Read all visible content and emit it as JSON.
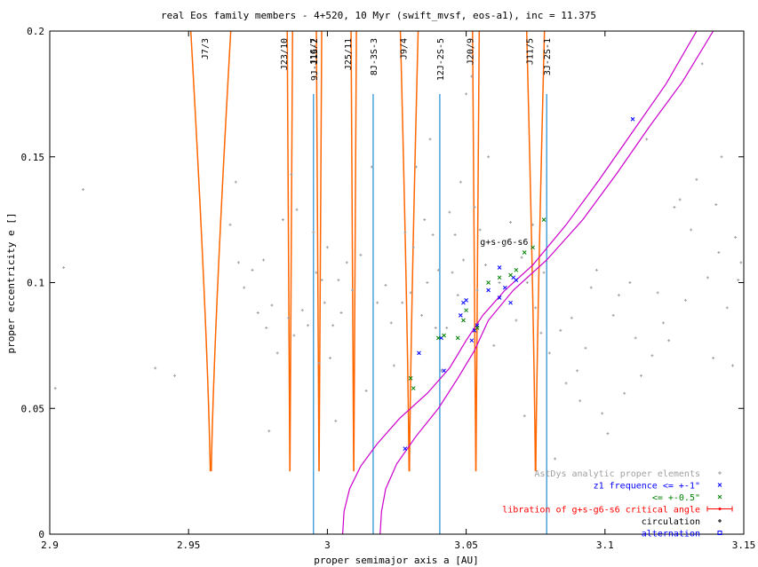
{
  "chart_data": {
    "type": "scatter",
    "title": "real Eos family members - 4+520, 10 Myr (swift_mvsf, eos-a1), inc = 11.375",
    "xlabel": "proper semimajor axis a [AU]",
    "ylabel": "proper eccentricity e []",
    "xlim": [
      2.9,
      3.15
    ],
    "ylim": [
      0,
      0.2
    ],
    "xticks": [
      2.9,
      2.95,
      3.0,
      3.05,
      3.1,
      3.15
    ],
    "xtick_labels": [
      "2.9",
      "2.95",
      "3",
      "3.05",
      "3.1",
      "3.15"
    ],
    "yticks": [
      0,
      0.05,
      0.1,
      0.15,
      0.2
    ],
    "ytick_labels": [
      "0",
      "0.05",
      "0.1",
      "0.15",
      "0.2"
    ],
    "grid": false,
    "legend_position": "bottom-right",
    "colors": {
      "background_points": "#a0a0a0",
      "freq_1": "#0000ff",
      "freq_05": "#008000",
      "libration": "#ff0000",
      "circulation": "#000000",
      "alternation": "#0000ff",
      "resonance_orange": "#ff6600",
      "resonance_blue": "#1e8cd2",
      "secular_curve": "#cc00cc"
    },
    "legend": [
      {
        "label": "AstDys analytic proper elements",
        "color": "#a0a0a0",
        "marker": "+",
        "label_color": "#a0a0a0"
      },
      {
        "label": "z1 frequence <= +-1\"",
        "color": "#0000ff",
        "marker": "x",
        "label_color": "#0000ff"
      },
      {
        "label": "<= +-0.5\"",
        "color": "#008000",
        "marker": "x",
        "label_color": "#008000"
      },
      {
        "label": "libration of g+s-g6-s6 critical angle",
        "color": "#ff0000",
        "marker": "errorbar",
        "label_color": "#ff0000"
      },
      {
        "label": "circulation",
        "color": "#000000",
        "marker": "+",
        "label_color": "#000000"
      },
      {
        "label": "alternation",
        "color": "#0000ff",
        "marker": "square",
        "label_color": "#0000ff"
      }
    ],
    "resonances_orange": [
      {
        "label": "J7/3",
        "a": 2.958,
        "width": 0.009,
        "emin": 0.025
      },
      {
        "label": "J23/10",
        "a": 2.9865,
        "width": 0.0012,
        "emin": 0.025
      },
      {
        "label": "J16/7",
        "a": 2.997,
        "width": 0.0012,
        "emin": 0.025
      },
      {
        "label": "J25/11",
        "a": 3.0095,
        "width": 0.0012,
        "emin": 0.025
      },
      {
        "label": "J9/4",
        "a": 3.0295,
        "width": 0.004,
        "emin": 0.025
      },
      {
        "label": "J20/9",
        "a": 3.0535,
        "width": 0.0015,
        "emin": 0.025
      },
      {
        "label": "J11/5",
        "a": 3.075,
        "width": 0.004,
        "emin": 0.025
      }
    ],
    "resonances_blue": [
      {
        "label": "9J-11S-2",
        "a": 2.995,
        "emax": 0.175
      },
      {
        "label": "8J-3S-3",
        "a": 3.0165,
        "emax": 0.175
      },
      {
        "label": "12J-2S-5",
        "a": 3.0405,
        "emax": 0.175
      },
      {
        "label": "3J-2S-1",
        "a": 3.079,
        "emax": 0.175
      }
    ],
    "secular_label": "g+s-g6-s6",
    "secular_resonance_curves": [
      {
        "name": "g+s-g6-s6 lower",
        "points": [
          [
            3.0055,
            0.0
          ],
          [
            3.006,
            0.009
          ],
          [
            3.008,
            0.018
          ],
          [
            3.012,
            0.027
          ],
          [
            3.018,
            0.036
          ],
          [
            3.026,
            0.046
          ],
          [
            3.036,
            0.056
          ],
          [
            3.044,
            0.066
          ],
          [
            3.05,
            0.077
          ],
          [
            3.056,
            0.087
          ],
          [
            3.064,
            0.097
          ],
          [
            3.074,
            0.107
          ],
          [
            3.086,
            0.123
          ],
          [
            3.098,
            0.141
          ],
          [
            3.11,
            0.16
          ],
          [
            3.122,
            0.179
          ],
          [
            3.133,
            0.2
          ]
        ]
      },
      {
        "name": "g+s-g6-s6 upper",
        "points": [
          [
            3.019,
            0.0
          ],
          [
            3.0195,
            0.009
          ],
          [
            3.021,
            0.018
          ],
          [
            3.025,
            0.028
          ],
          [
            3.032,
            0.039
          ],
          [
            3.04,
            0.05
          ],
          [
            3.047,
            0.062
          ],
          [
            3.053,
            0.073
          ],
          [
            3.058,
            0.085
          ],
          [
            3.067,
            0.097
          ],
          [
            3.079,
            0.109
          ],
          [
            3.092,
            0.125
          ],
          [
            3.104,
            0.143
          ],
          [
            3.116,
            0.162
          ],
          [
            3.128,
            0.18
          ],
          [
            3.139,
            0.2
          ]
        ]
      }
    ],
    "series": [
      {
        "name": "AstDys analytic proper elements",
        "marker": "+",
        "points": [
          [
            2.902,
            0.058
          ],
          [
            2.905,
            0.106
          ],
          [
            2.912,
            0.137
          ],
          [
            2.938,
            0.066
          ],
          [
            2.945,
            0.063
          ],
          [
            2.965,
            0.123
          ],
          [
            2.967,
            0.14
          ],
          [
            2.968,
            0.108
          ],
          [
            2.97,
            0.098
          ],
          [
            2.973,
            0.105
          ],
          [
            2.975,
            0.088
          ],
          [
            2.977,
            0.109
          ],
          [
            2.978,
            0.082
          ],
          [
            2.979,
            0.041
          ],
          [
            2.98,
            0.091
          ],
          [
            2.982,
            0.072
          ],
          [
            2.984,
            0.125
          ],
          [
            2.986,
            0.086
          ],
          [
            2.987,
            0.143
          ],
          [
            2.988,
            0.079
          ],
          [
            2.989,
            0.129
          ],
          [
            2.991,
            0.089
          ],
          [
            2.993,
            0.083
          ],
          [
            2.995,
            0.12
          ],
          [
            2.996,
            0.104
          ],
          [
            2.997,
            0.068
          ],
          [
            2.998,
            0.101
          ],
          [
            2.999,
            0.092
          ],
          [
            3.0,
            0.114
          ],
          [
            3.001,
            0.07
          ],
          [
            3.002,
            0.083
          ],
          [
            3.003,
            0.045
          ],
          [
            3.004,
            0.101
          ],
          [
            3.005,
            0.088
          ],
          [
            3.007,
            0.108
          ],
          [
            3.009,
            0.097
          ],
          [
            3.012,
            0.111
          ],
          [
            3.014,
            0.057
          ],
          [
            3.016,
            0.146
          ],
          [
            3.018,
            0.092
          ],
          [
            3.021,
            0.099
          ],
          [
            3.023,
            0.084
          ],
          [
            3.024,
            0.067
          ],
          [
            3.027,
            0.092
          ],
          [
            3.028,
            0.12
          ],
          [
            3.03,
            0.096
          ],
          [
            3.031,
            0.114
          ],
          [
            3.032,
            0.146
          ],
          [
            3.034,
            0.087
          ],
          [
            3.035,
            0.125
          ],
          [
            3.036,
            0.1
          ],
          [
            3.037,
            0.157
          ],
          [
            3.038,
            0.119
          ],
          [
            3.039,
            0.082
          ],
          [
            3.04,
            0.105
          ],
          [
            3.041,
            0.065
          ],
          [
            3.043,
            0.082
          ],
          [
            3.044,
            0.128
          ],
          [
            3.045,
            0.104
          ],
          [
            3.046,
            0.119
          ],
          [
            3.047,
            0.095
          ],
          [
            3.048,
            0.14
          ],
          [
            3.049,
            0.109
          ],
          [
            3.05,
            0.175
          ],
          [
            3.052,
            0.182
          ],
          [
            3.053,
            0.13
          ],
          [
            3.054,
            0.097
          ],
          [
            3.055,
            0.121
          ],
          [
            3.057,
            0.107
          ],
          [
            3.058,
            0.15
          ],
          [
            3.06,
            0.075
          ],
          [
            3.062,
            0.1
          ],
          [
            3.064,
            0.115
          ],
          [
            3.066,
            0.124
          ],
          [
            3.068,
            0.085
          ],
          [
            3.07,
            0.11
          ],
          [
            3.071,
            0.047
          ],
          [
            3.072,
            0.1
          ],
          [
            3.074,
            0.123
          ],
          [
            3.075,
            0.09
          ],
          [
            3.077,
            0.08
          ],
          [
            3.078,
            0.104
          ],
          [
            3.08,
            0.072
          ],
          [
            3.082,
            0.03
          ],
          [
            3.084,
            0.081
          ],
          [
            3.086,
            0.06
          ],
          [
            3.088,
            0.086
          ],
          [
            3.09,
            0.065
          ],
          [
            3.091,
            0.053
          ],
          [
            3.093,
            0.074
          ],
          [
            3.095,
            0.098
          ],
          [
            3.097,
            0.105
          ],
          [
            3.099,
            0.048
          ],
          [
            3.101,
            0.04
          ],
          [
            3.103,
            0.087
          ],
          [
            3.105,
            0.095
          ],
          [
            3.107,
            0.056
          ],
          [
            3.109,
            0.1
          ],
          [
            3.111,
            0.078
          ],
          [
            3.113,
            0.063
          ],
          [
            3.115,
            0.157
          ],
          [
            3.117,
            0.071
          ],
          [
            3.119,
            0.096
          ],
          [
            3.121,
            0.084
          ],
          [
            3.123,
            0.077
          ],
          [
            3.125,
            0.13
          ],
          [
            3.127,
            0.133
          ],
          [
            3.129,
            0.093
          ],
          [
            3.131,
            0.121
          ],
          [
            3.133,
            0.141
          ],
          [
            3.135,
            0.187
          ],
          [
            3.137,
            0.102
          ],
          [
            3.139,
            0.07
          ],
          [
            3.14,
            0.131
          ],
          [
            3.141,
            0.112
          ],
          [
            3.142,
            0.15
          ],
          [
            3.144,
            0.09
          ],
          [
            3.146,
            0.067
          ],
          [
            3.147,
            0.118
          ],
          [
            3.148,
            0.101
          ],
          [
            3.149,
            0.108
          ]
        ]
      },
      {
        "name": "z1 frequence <= +-1\"",
        "marker": "x",
        "points": [
          [
            3.028,
            0.034
          ],
          [
            3.033,
            0.072
          ],
          [
            3.041,
            0.078
          ],
          [
            3.042,
            0.065
          ],
          [
            3.048,
            0.087
          ],
          [
            3.049,
            0.092
          ],
          [
            3.05,
            0.093
          ],
          [
            3.052,
            0.077
          ],
          [
            3.053,
            0.081
          ],
          [
            3.054,
            0.083
          ],
          [
            3.058,
            0.097
          ],
          [
            3.062,
            0.094
          ],
          [
            3.062,
            0.106
          ],
          [
            3.064,
            0.098
          ],
          [
            3.066,
            0.092
          ],
          [
            3.067,
            0.102
          ],
          [
            3.068,
            0.101
          ],
          [
            3.11,
            0.165
          ]
        ]
      },
      {
        "name": "<= +-0.5\"",
        "marker": "x",
        "points": [
          [
            3.03,
            0.062
          ],
          [
            3.031,
            0.058
          ],
          [
            3.04,
            0.078
          ],
          [
            3.042,
            0.079
          ],
          [
            3.047,
            0.078
          ],
          [
            3.049,
            0.085
          ],
          [
            3.05,
            0.089
          ],
          [
            3.054,
            0.082
          ],
          [
            3.058,
            0.1
          ],
          [
            3.062,
            0.102
          ],
          [
            3.066,
            0.103
          ],
          [
            3.068,
            0.105
          ],
          [
            3.071,
            0.112
          ],
          [
            3.074,
            0.114
          ],
          [
            3.078,
            0.125
          ]
        ]
      }
    ]
  }
}
